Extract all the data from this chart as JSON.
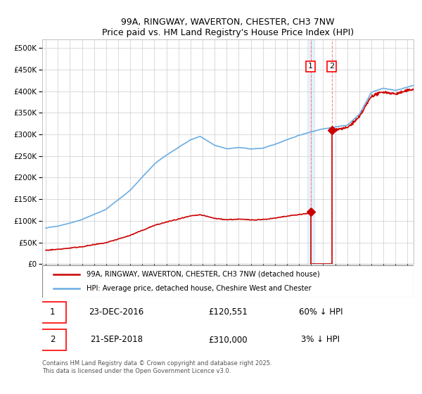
{
  "title": "99A, RINGWAY, WAVERTON, CHESTER, CH3 7NW",
  "subtitle": "Price paid vs. HM Land Registry's House Price Index (HPI)",
  "ylim": [
    0,
    520000
  ],
  "yticks": [
    0,
    50000,
    100000,
    150000,
    200000,
    250000,
    300000,
    350000,
    400000,
    450000,
    500000
  ],
  "xlim_start": 1995.0,
  "xlim_end": 2025.5,
  "hpi_color": "#6aade4",
  "price_color": "#cc0000",
  "transaction1": {
    "date": "23-DEC-2016",
    "price": 120551,
    "label": "1",
    "year": 2016.97
  },
  "transaction2": {
    "date": "21-SEP-2018",
    "price": 310000,
    "label": "2",
    "year": 2018.72
  },
  "legend_entry1": "99A, RINGWAY, WAVERTON, CHESTER, CH3 7NW (detached house)",
  "legend_entry2": "HPI: Average price, detached house, Cheshire West and Chester",
  "table_row1": [
    "1",
    "23-DEC-2016",
    "£120,551",
    "60% ↓ HPI"
  ],
  "table_row2": [
    "2",
    "21-SEP-2018",
    "£310,000",
    "3% ↓ HPI"
  ],
  "footnote": "Contains HM Land Registry data © Crown copyright and database right 2025.\nThis data is licensed under the Open Government Licence v3.0.",
  "background_color": "#ffffff",
  "grid_color": "#cccccc"
}
